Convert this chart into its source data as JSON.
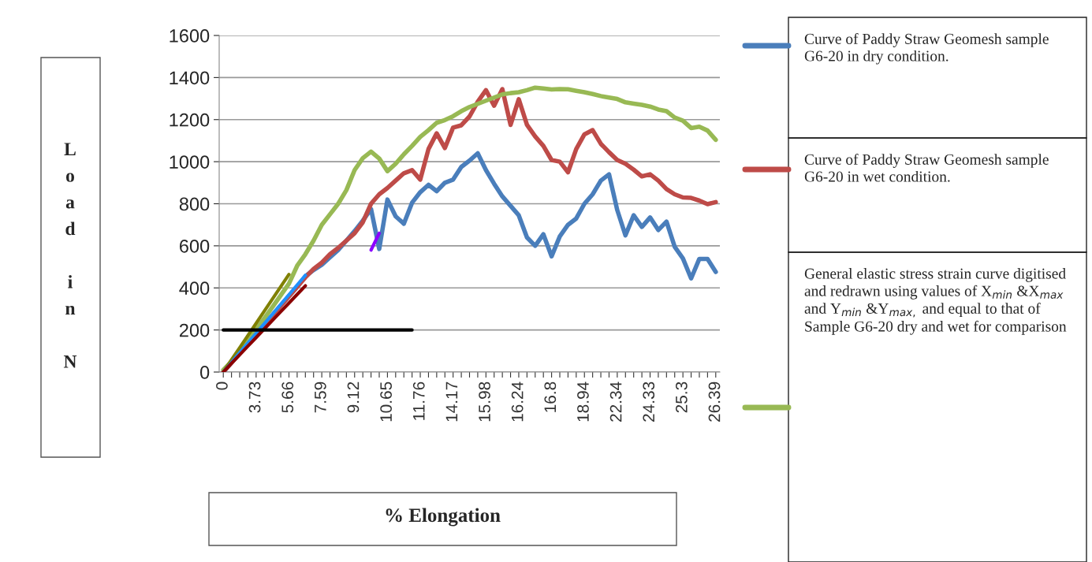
{
  "chart_data": {
    "type": "line",
    "xlabel": "% Elongation",
    "ylabel": "Load in N",
    "categories": [
      "0",
      null,
      null,
      null,
      "3.73",
      null,
      null,
      null,
      "5.66",
      null,
      null,
      null,
      "7.59",
      null,
      null,
      null,
      "9.12",
      null,
      null,
      null,
      "10.65",
      null,
      null,
      null,
      "11.76",
      null,
      null,
      null,
      "14.17",
      null,
      null,
      null,
      "15.98",
      null,
      null,
      null,
      "16.24",
      null,
      null,
      null,
      "16.8",
      null,
      null,
      null,
      "18.94",
      null,
      null,
      null,
      "22.34",
      null,
      null,
      null,
      "24.33",
      null,
      null,
      null,
      "25.3",
      null,
      null,
      null,
      "26.39"
    ],
    "ylim": [
      0,
      1600
    ],
    "yticks": [
      0,
      200,
      400,
      600,
      800,
      1000,
      1200,
      1400,
      1600
    ],
    "grid": "y",
    "legend": "right",
    "line_style": "solid",
    "marker": "none",
    "series": [
      {
        "name": "Curve of Paddy Straw Geomesh sample G6-20 in dry condition.",
        "color": "#4a7ebb",
        "values": [
          0,
          45,
          90,
          135,
          180,
          225,
          270,
          315,
          360,
          405,
          455,
          485,
          510,
          545,
          580,
          625,
          670,
          720,
          775,
          585,
          820,
          740,
          705,
          805,
          855,
          890,
          860,
          900,
          915,
          975,
          1005,
          1040,
          960,
          895,
          835,
          790,
          745,
          640,
          600,
          655,
          550,
          645,
          700,
          730,
          800,
          845,
          910,
          940,
          770,
          650,
          745,
          690,
          735,
          675,
          715,
          595,
          540,
          445,
          538,
          538,
          476
        ]
      },
      {
        "name": "Curve of Paddy Straw Geomesh sample G6-20 in wet condition.",
        "color": "#be4b48",
        "values": [
          0,
          45,
          90,
          135,
          180,
          225,
          270,
          315,
          360,
          405,
          450,
          490,
          520,
          560,
          590,
          625,
          660,
          712,
          800,
          845,
          875,
          910,
          945,
          960,
          915,
          1060,
          1135,
          1065,
          1162,
          1173,
          1215,
          1285,
          1340,
          1266,
          1345,
          1175,
          1297,
          1175,
          1120,
          1075,
          1008,
          1000,
          950,
          1060,
          1130,
          1150,
          1085,
          1045,
          1008,
          990,
          962,
          930,
          940,
          910,
          870,
          845,
          830,
          828,
          815,
          798,
          808
        ]
      },
      {
        "name": "General elastic stress strain curve digitised and redrawn using values of X$_{min}$ &X$_{max}$ and Y$_{min}$ &Y$_{max,}$ and equal to that of Sample G6-20 dry and wet for comparison",
        "color": "#98b954",
        "values": [
          10,
          50,
          100,
          155,
          205,
          255,
          310,
          365,
          420,
          505,
          560,
          625,
          700,
          750,
          800,
          865,
          960,
          1017,
          1048,
          1015,
          955,
          990,
          1035,
          1075,
          1118,
          1150,
          1185,
          1198,
          1216,
          1240,
          1260,
          1275,
          1290,
          1305,
          1320,
          1326,
          1330,
          1340,
          1352,
          1348,
          1343,
          1345,
          1344,
          1337,
          1330,
          1322,
          1312,
          1305,
          1298,
          1282,
          1276,
          1270,
          1262,
          1248,
          1240,
          1210,
          1195,
          1160,
          1166,
          1148,
          1104
        ]
      },
      {
        "color": "#808000",
        "values": [
          0,
          58,
          116,
          174,
          232,
          290,
          348,
          406,
          464,
          null,
          null,
          null,
          null,
          null,
          null,
          null,
          null,
          null,
          null,
          null,
          null,
          null,
          null,
          null,
          null,
          null,
          null,
          null,
          null,
          null,
          null,
          null,
          null,
          null,
          null,
          null,
          null,
          null,
          null,
          null,
          null,
          null,
          null,
          null,
          null,
          null,
          null,
          null,
          null,
          null,
          null,
          null,
          null,
          null,
          null,
          null,
          null,
          null,
          null,
          null,
          null
        ]
      },
      {
        "color": "#1e90ff",
        "values": [
          0,
          46,
          92,
          138,
          184,
          230,
          276,
          322,
          368,
          414,
          460,
          null,
          null,
          null,
          null,
          null,
          null,
          null,
          null,
          null,
          null,
          null,
          null,
          null,
          null,
          null,
          null,
          null,
          null,
          null,
          null,
          null,
          null,
          null,
          null,
          null,
          null,
          null,
          null,
          null,
          null,
          null,
          null,
          null,
          null,
          null,
          null,
          null,
          null,
          null,
          null,
          null,
          null,
          null,
          null,
          null,
          null,
          null,
          null,
          null,
          null
        ]
      },
      {
        "color": "#8b0000",
        "values": [
          0,
          41,
          82,
          123,
          164,
          205,
          246,
          287,
          328,
          369,
          410,
          null,
          null,
          null,
          null,
          null,
          null,
          null,
          null,
          null,
          null,
          null,
          null,
          null,
          null,
          null,
          null,
          null,
          null,
          null,
          null,
          null,
          null,
          null,
          null,
          null,
          null,
          null,
          null,
          null,
          null,
          null,
          null,
          null,
          null,
          null,
          null,
          null,
          null,
          null,
          null,
          null,
          null,
          null,
          null,
          null,
          null,
          null,
          null,
          null,
          null
        ]
      },
      {
        "color": "#8b00ff",
        "values": [
          null,
          null,
          null,
          null,
          null,
          null,
          null,
          null,
          null,
          null,
          null,
          null,
          null,
          null,
          null,
          null,
          null,
          null,
          580,
          660,
          null,
          null,
          null,
          null,
          null,
          null,
          null,
          null,
          null,
          null,
          null,
          null,
          null,
          null,
          null,
          null,
          null,
          null,
          null,
          null,
          null,
          null,
          null,
          null,
          null,
          null,
          null,
          null,
          null,
          null,
          null,
          null,
          null,
          null,
          null,
          null,
          null,
          null,
          null,
          null,
          null
        ]
      },
      {
        "color": "#000000",
        "values": [
          200,
          200,
          200,
          200,
          200,
          200,
          200,
          200,
          200,
          200,
          200,
          200,
          200,
          200,
          200,
          200,
          200,
          200,
          200,
          200,
          200,
          200,
          200,
          200,
          null,
          null,
          null,
          null,
          null,
          null,
          null,
          null,
          null,
          null,
          null,
          null,
          null,
          null,
          null,
          null,
          null,
          null,
          null,
          null,
          null,
          null,
          null,
          null,
          null,
          null,
          null,
          null,
          null,
          null,
          null,
          null,
          null,
          null,
          null,
          null,
          null
        ]
      }
    ]
  }
}
